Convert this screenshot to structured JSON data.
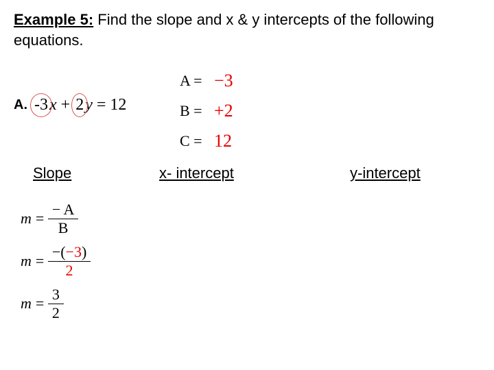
{
  "header": {
    "label": "Example 5:",
    "text": "Find the slope and x & y intercepts of the following equations."
  },
  "coeffs": {
    "a_lhs": "A =",
    "a_val": "−3",
    "b_lhs": "B =",
    "b_val": "+2",
    "c_lhs": "C =",
    "c_val": "12"
  },
  "partA": {
    "label": "A.",
    "coef1": "-3",
    "var1": "x",
    "op": "+",
    "coef2": "2",
    "var2": "y",
    "eq": "=",
    "rhs": "12"
  },
  "columns": {
    "slope": "Slope",
    "xi": "x- intercept",
    "yi": "y-intercept"
  },
  "slope_work": {
    "m": "m",
    "eq": "=",
    "r1_num": "− A",
    "r1_den": "B",
    "r2_num_pre": "−(",
    "r2_num_val": "−3",
    "r2_num_post": ")",
    "r2_den": "2",
    "r3_num": "3",
    "r3_den": "2"
  },
  "colors": {
    "red": "#e60000",
    "circle": "#d95555",
    "text": "#000000",
    "bg": "#ffffff"
  }
}
